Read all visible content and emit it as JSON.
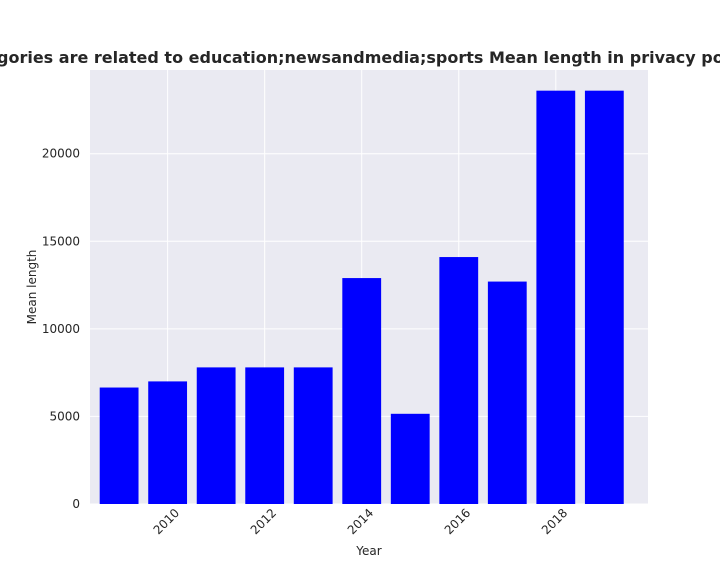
{
  "chart_data": {
    "type": "bar",
    "title": "Children categories are related to education;newsandmedia;sports Mean length in privacy policies by year",
    "xlabel": "Year",
    "ylabel": "Mean length",
    "x": [
      2009,
      2010,
      2011,
      2012,
      2013,
      2014,
      2015,
      2016,
      2017,
      2018,
      2019
    ],
    "values": [
      6650,
      7000,
      7800,
      7800,
      7800,
      12900,
      5150,
      14100,
      12700,
      23600,
      23600
    ],
    "xticks": [
      2010,
      2012,
      2014,
      2016,
      2018
    ],
    "yticks": [
      0,
      5000,
      10000,
      15000,
      20000
    ],
    "ylim": [
      0,
      24780
    ],
    "xlim": [
      2008.4,
      2019.9
    ],
    "grid": true,
    "bar_color": "#0000ff",
    "plot_background": "#eaeaf2",
    "grid_color": "#ffffff"
  }
}
